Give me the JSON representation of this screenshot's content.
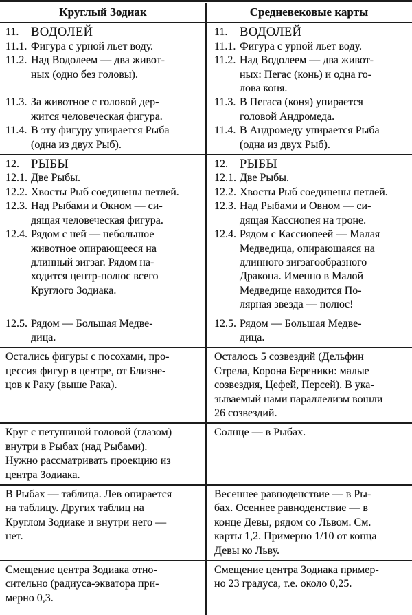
{
  "colors": {
    "ink": "#141414",
    "paper": "#ffffff"
  },
  "table": {
    "header": {
      "left": "Круглый Зодиак",
      "right": "Средневековые карты"
    },
    "sections": [
      {
        "items": [
          {
            "num": "11.",
            "left": "ВОДОЛЕЙ",
            "right": "ВОДОЛЕЙ"
          },
          {
            "num": "11.1.",
            "left": "Фигура с урной льет воду.",
            "right": "Фигура с урной льет воду."
          },
          {
            "num": "11.2.",
            "left": "Над Водолеем — два живот-\nных (одно без головы).",
            "right": "Над Водолеем — два живот-\nных: Пегас (конь) и одна го-\nлова коня."
          },
          {
            "num": "11.3.",
            "left": "За животное с головой дер-\nжится человеческая фигура.",
            "right": "В Пегаса (коня) упирается\nголовой Андромеда."
          },
          {
            "num": "11.4.",
            "left": "В эту фигуру упирается Рыба\n(одна из двух Рыб).",
            "right": "В Андромеду упирается Рыба\n(одна из двух Рыб)."
          }
        ]
      },
      {
        "items": [
          {
            "num": "12.",
            "left": "РЫБЫ",
            "right": "РЫБЫ"
          },
          {
            "num": "12.1.",
            "left": "Две Рыбы.",
            "right": "Две Рыбы."
          },
          {
            "num": "12.2.",
            "left": "Хвосты Рыб соединены петлей.",
            "right": "Хвосты Рыб соединены петлей."
          },
          {
            "num": "12.3.",
            "left": "Над Рыбами и Окном — си-\nдящая человеческая фигура.",
            "right": "Над Рыбами и Овном — си-\nдящая Кассиопея на троне."
          },
          {
            "num": "12.4.",
            "left": "Рядом с ней — небольшое\nживотное опирающееся на\nдлинный зигзаг. Рядом на-\nходится центр-полюс всего\nКруглого Зодиака.",
            "right": "Рядом с Кассиопеей — Малая\nМедведица, опирающаяся на\nдлинного зигзагообразного\nДракона. Именно в Малой\nМедведице находится По-\nлярная звезда — полюс!"
          },
          {
            "num": "12.5.",
            "left": "Рядом — Большая Медве-\nдица.",
            "right": "Рядом — Большая Медве-\nдица."
          }
        ]
      },
      {
        "left": "Остались фигуры с посохами, про-\nцессия фигур в центре, от Близне-\nцов к Раку (выше Рака).",
        "right": "Осталось 5 созвездий (Дельфин\nСтрела, Корона Береники: малые\nсозвездия, Цефей, Персей). В ука-\nзываемый нами параллелизм вошли\n26 созвездий."
      },
      {
        "left": "Круг с петушиной головой (глазом)\nвнутри в Рыбах (над Рыбами).\nНужно рассматривать проекцию из\nцентра Зодиака.",
        "right": "Солнце — в Рыбах."
      },
      {
        "left": "В Рыбах — таблица. Лев опирается\nна таблицу. Других таблиц на\nКруглом Зодиаке и внутри него —\nнет.",
        "right": "Весеннее равноденствие — в Ры-\nбах. Осеннее равноденствие — в\nконце Девы, рядом со Львом. См.\nкарты 1,2. Примерно 1/10 от конца\nДевы ко Льву."
      },
      {
        "left": "Смещение центра Зодиака отно-\nсительно (радиуса-экватора при-\nмерно 0,3.",
        "right": "Смещение центра Зодиака пример-\nно 23 градуса, т.е. около 0,25."
      }
    ]
  }
}
